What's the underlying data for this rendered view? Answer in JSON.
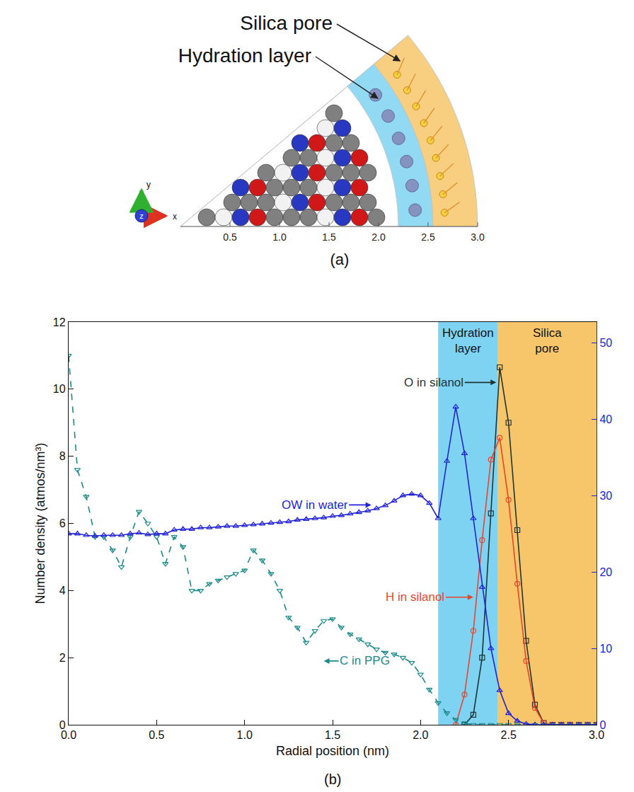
{
  "panel_a": {
    "label": "(a)",
    "triad": [
      "x",
      "y",
      "z"
    ],
    "xlim": [
      0,
      3.0
    ],
    "xticks": [
      0.5,
      {
        "value": 1,
        "label": "1.0"
      },
      1.5,
      {
        "value": 2,
        "label": "2.0"
      },
      2.5,
      {
        "value": 3,
        "label": "3.0"
      }
    ],
    "regions": [
      {
        "name": "Hydration layer",
        "r0": 2.2,
        "r1": 2.55,
        "color": "#7fd3f2"
      },
      {
        "name": "Silica pore",
        "r0": 2.55,
        "r1": 3.0,
        "color": "#f7c56a"
      }
    ]
  },
  "chart_data": {
    "type": "line",
    "caption": "(b)",
    "x_label": "Radial position (nm)",
    "y_label": "Number density (atmos/nm³)",
    "grid": false,
    "xlim": [
      0,
      3.0
    ],
    "xticks": [
      {
        "value": 0,
        "label": "0.0"
      },
      0.5,
      {
        "value": 1,
        "label": "1.0"
      },
      1.5,
      {
        "value": 2,
        "label": "2.0"
      },
      2.5,
      {
        "value": 3,
        "label": "3.0"
      }
    ],
    "ylim": [
      0,
      12
    ],
    "yticks": [
      0,
      2,
      4,
      6,
      8,
      10,
      12
    ],
    "y2lim": [
      0,
      52.7
    ],
    "y2ticks": [
      0,
      10,
      20,
      30,
      40,
      50
    ],
    "regions": [
      {
        "name": "Hydration layer",
        "x0": 2.1,
        "x1": 2.44,
        "color": "#7fd3f2"
      },
      {
        "name": "Silica pore",
        "x0": 2.44,
        "x1": 3.0,
        "color": "#f7c56a"
      }
    ],
    "series": [
      {
        "name": "O in silanol",
        "color": "#1e3535",
        "marker": "square-open",
        "line_style": "solid",
        "x": [
          2.25,
          2.3,
          2.35,
          2.4,
          2.45,
          2.5,
          2.55,
          2.6,
          2.65,
          2.7,
          2.75,
          2.8,
          2.85,
          2.9,
          2.95,
          3.0
        ],
        "values": [
          0,
          0.3,
          2.0,
          6.3,
          10.65,
          9.0,
          5.8,
          2.5,
          0.6,
          0.05,
          0,
          0,
          0,
          0,
          0,
          0
        ]
      },
      {
        "name": "OW in water",
        "color": "#2323d6",
        "marker": "triangle-up-open",
        "line_style": "solid",
        "axis": "y2",
        "x": [
          0,
          0.05,
          0.1,
          0.15,
          0.2,
          0.25,
          0.3,
          0.35,
          0.4,
          0.45,
          0.5,
          0.55,
          0.6,
          0.65,
          0.7,
          0.75,
          0.8,
          0.85,
          0.9,
          0.95,
          1.0,
          1.05,
          1.1,
          1.15,
          1.2,
          1.25,
          1.3,
          1.35,
          1.4,
          1.45,
          1.5,
          1.55,
          1.6,
          1.65,
          1.7,
          1.75,
          1.8,
          1.85,
          1.9,
          1.95,
          2.0,
          2.05,
          2.1,
          2.15,
          2.2,
          2.25,
          2.3,
          2.35,
          2.4,
          2.45,
          2.5,
          2.55,
          2.6,
          2.65,
          2.7,
          2.75,
          2.8,
          2.85,
          2.9,
          2.95,
          3.0
        ],
        "values": [
          25.0,
          25.0,
          24.8,
          24.7,
          24.8,
          24.8,
          24.8,
          25.0,
          25.1,
          24.9,
          25.0,
          25.0,
          25.5,
          25.6,
          25.6,
          25.8,
          25.8,
          25.9,
          26.0,
          26.0,
          26.1,
          26.2,
          26.3,
          26.4,
          26.5,
          26.6,
          26.8,
          26.9,
          27.0,
          27.1,
          27.3,
          27.4,
          27.6,
          27.8,
          28.0,
          28.3,
          28.7,
          29.3,
          30.0,
          30.2,
          30.0,
          29.0,
          27.0,
          34.5,
          41.6,
          35.5,
          27.0,
          18.0,
          10.0,
          4.5,
          1.5,
          0.5,
          0.1,
          0,
          0,
          0,
          0,
          0,
          0,
          0,
          0
        ]
      },
      {
        "name": "H in silanol",
        "color": "#e8452c",
        "marker": "circle-open",
        "line_style": "solid",
        "x": [
          2.2,
          2.25,
          2.3,
          2.35,
          2.4,
          2.45,
          2.5,
          2.55,
          2.6,
          2.65,
          2.7,
          2.75,
          2.8,
          2.85,
          2.9,
          2.95,
          3.0
        ],
        "values": [
          0,
          0.9,
          2.8,
          5.5,
          7.9,
          8.55,
          6.7,
          4.2,
          1.9,
          0.5,
          0.05,
          0,
          0,
          0,
          0,
          0,
          0
        ]
      },
      {
        "name": "C in PPG",
        "color": "#1b8a8a",
        "marker": "triangle-down-open",
        "line_style": "dash",
        "x": [
          0,
          0.05,
          0.1,
          0.15,
          0.2,
          0.25,
          0.3,
          0.35,
          0.4,
          0.45,
          0.5,
          0.55,
          0.6,
          0.65,
          0.7,
          0.75,
          0.8,
          0.85,
          0.9,
          0.95,
          1.0,
          1.05,
          1.1,
          1.15,
          1.2,
          1.25,
          1.3,
          1.35,
          1.4,
          1.45,
          1.5,
          1.55,
          1.6,
          1.65,
          1.7,
          1.75,
          1.8,
          1.85,
          1.9,
          1.95,
          2.0,
          2.05,
          2.1,
          2.15,
          2.2,
          2.25,
          2.3,
          2.35,
          2.4,
          2.45,
          2.5,
          2.55,
          2.6,
          2.65,
          2.7,
          2.75,
          2.8,
          2.85,
          2.9,
          2.95,
          3.0
        ],
        "values": [
          11.0,
          7.6,
          6.8,
          5.6,
          5.6,
          5.2,
          4.7,
          5.6,
          6.35,
          6.0,
          5.6,
          4.8,
          5.6,
          5.3,
          4.0,
          4.0,
          4.2,
          4.3,
          4.4,
          4.5,
          4.6,
          5.2,
          4.9,
          4.5,
          4.0,
          3.2,
          2.9,
          2.45,
          2.8,
          3.1,
          3.15,
          2.9,
          2.7,
          2.55,
          2.4,
          2.25,
          2.15,
          2.1,
          2.0,
          1.85,
          1.5,
          1.05,
          0.65,
          0.35,
          0.15,
          0.05,
          0,
          0,
          0,
          0,
          0,
          0,
          0,
          0,
          0,
          0,
          0,
          0,
          0,
          0,
          0
        ]
      }
    ],
    "annotations": [
      {
        "text": "O in silanol",
        "x": 2.43,
        "y": 10.2
      },
      {
        "text": "OW in water",
        "x": 1.72,
        "y": 6.55
      },
      {
        "text": "H in silanol",
        "x": 2.3,
        "y": 3.8
      },
      {
        "text": "C in PPG",
        "x": 1.45,
        "y": 1.9
      }
    ]
  }
}
